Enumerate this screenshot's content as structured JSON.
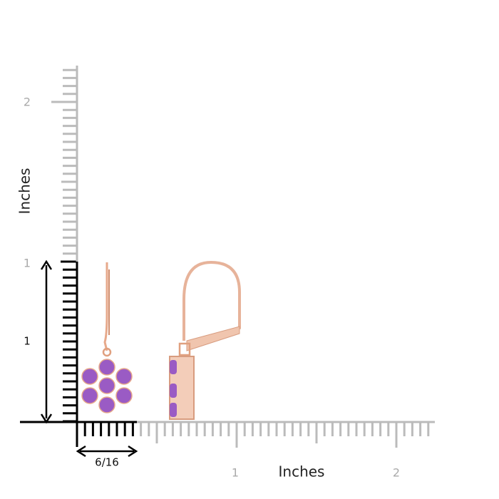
{
  "ruler": {
    "vertical_labels": [
      "2",
      "1"
    ],
    "vertical_title": "Inches",
    "height_label": "1",
    "width_label": "6/16",
    "horizontal_labels": [
      "1",
      "2"
    ],
    "horizontal_title": "Inches"
  }
}
